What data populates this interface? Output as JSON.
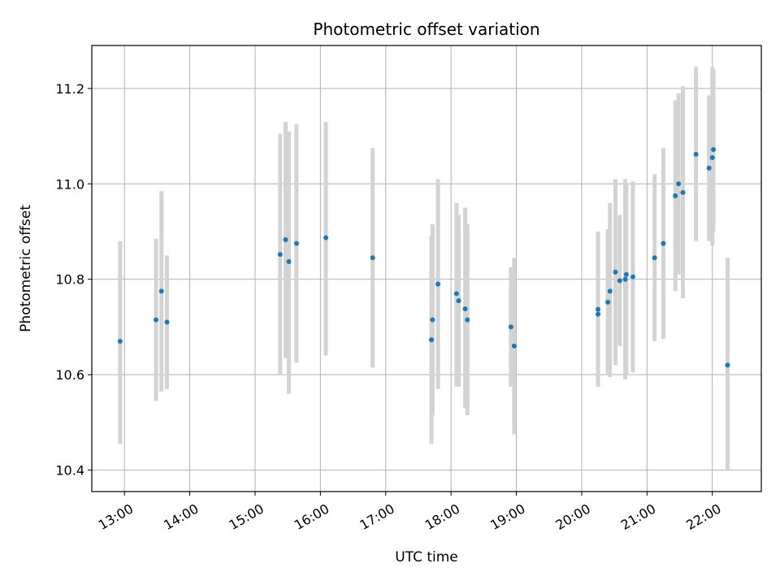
{
  "chart_data": {
    "type": "scatter",
    "title": "Photometric offset variation",
    "xlabel": "UTC time",
    "ylabel": "Photometric offset",
    "xlim": [
      "12:30",
      "22:45"
    ],
    "ylim": [
      10.355,
      11.29
    ],
    "grid": true,
    "x_tick_labels": [
      "13:00",
      "14:00",
      "15:00",
      "16:00",
      "17:00",
      "18:00",
      "19:00",
      "20:00",
      "21:00",
      "22:00"
    ],
    "y_tick_values": [
      10.4,
      10.6,
      10.8,
      11.0,
      11.2
    ],
    "y_tick_labels": [
      "10.4",
      "10.6",
      "10.8",
      "11.0",
      "11.2"
    ],
    "point_color": "#1f77b4",
    "errorbar_color": "#d3d3d3",
    "points": [
      {
        "x": "12:56",
        "y": 10.67,
        "ylow": 10.455,
        "yhigh": 10.88
      },
      {
        "x": "13:29",
        "y": 10.715,
        "ylow": 10.545,
        "yhigh": 10.885
      },
      {
        "x": "13:34",
        "y": 10.775,
        "ylow": 10.565,
        "yhigh": 10.985
      },
      {
        "x": "13:39",
        "y": 10.71,
        "ylow": 10.57,
        "yhigh": 10.85
      },
      {
        "x": "15:23",
        "y": 10.852,
        "ylow": 10.6,
        "yhigh": 11.105
      },
      {
        "x": "15:28",
        "y": 10.883,
        "ylow": 10.635,
        "yhigh": 11.13
      },
      {
        "x": "15:31",
        "y": 10.837,
        "ylow": 10.56,
        "yhigh": 11.11
      },
      {
        "x": "15:38",
        "y": 10.875,
        "ylow": 10.625,
        "yhigh": 11.125
      },
      {
        "x": "16:05",
        "y": 10.887,
        "ylow": 10.64,
        "yhigh": 11.13
      },
      {
        "x": "16:48",
        "y": 10.845,
        "ylow": 10.615,
        "yhigh": 11.075
      },
      {
        "x": "17:42",
        "y": 10.673,
        "ylow": 10.455,
        "yhigh": 10.89
      },
      {
        "x": "17:43",
        "y": 10.715,
        "ylow": 10.515,
        "yhigh": 10.915
      },
      {
        "x": "17:48",
        "y": 10.79,
        "ylow": 10.57,
        "yhigh": 11.01
      },
      {
        "x": "18:05",
        "y": 10.77,
        "ylow": 10.575,
        "yhigh": 10.96
      },
      {
        "x": "18:07",
        "y": 10.755,
        "ylow": 10.575,
        "yhigh": 10.935
      },
      {
        "x": "18:13",
        "y": 10.738,
        "ylow": 10.53,
        "yhigh": 10.95
      },
      {
        "x": "18:15",
        "y": 10.715,
        "ylow": 10.515,
        "yhigh": 10.915
      },
      {
        "x": "18:55",
        "y": 10.7,
        "ylow": 10.575,
        "yhigh": 10.825
      },
      {
        "x": "18:58",
        "y": 10.66,
        "ylow": 10.475,
        "yhigh": 10.845
      },
      {
        "x": "20:15",
        "y": 10.737,
        "ylow": 10.575,
        "yhigh": 10.9
      },
      {
        "x": "20:15",
        "y": 10.727,
        "ylow": 10.575,
        "yhigh": 10.885
      },
      {
        "x": "20:24",
        "y": 10.752,
        "ylow": 10.6,
        "yhigh": 10.905
      },
      {
        "x": "20:26",
        "y": 10.775,
        "ylow": 10.595,
        "yhigh": 10.96
      },
      {
        "x": "20:31",
        "y": 10.815,
        "ylow": 10.62,
        "yhigh": 11.01
      },
      {
        "x": "20:35",
        "y": 10.797,
        "ylow": 10.66,
        "yhigh": 10.935
      },
      {
        "x": "20:40",
        "y": 10.8,
        "ylow": 10.59,
        "yhigh": 11.01
      },
      {
        "x": "20:41",
        "y": 10.81,
        "ylow": 10.6,
        "yhigh": 11.0
      },
      {
        "x": "20:47",
        "y": 10.805,
        "ylow": 10.605,
        "yhigh": 11.005
      },
      {
        "x": "21:07",
        "y": 10.845,
        "ylow": 10.67,
        "yhigh": 11.02
      },
      {
        "x": "21:15",
        "y": 10.875,
        "ylow": 10.675,
        "yhigh": 11.075
      },
      {
        "x": "21:26",
        "y": 10.975,
        "ylow": 10.775,
        "yhigh": 11.175
      },
      {
        "x": "21:29",
        "y": 11.0,
        "ylow": 10.81,
        "yhigh": 11.19
      },
      {
        "x": "21:33",
        "y": 10.982,
        "ylow": 10.76,
        "yhigh": 11.205
      },
      {
        "x": "21:45",
        "y": 11.062,
        "ylow": 10.88,
        "yhigh": 11.245
      },
      {
        "x": "21:57",
        "y": 11.033,
        "ylow": 10.88,
        "yhigh": 11.185
      },
      {
        "x": "22:00",
        "y": 11.055,
        "ylow": 10.87,
        "yhigh": 11.245
      },
      {
        "x": "22:01",
        "y": 11.072,
        "ylow": 10.9,
        "yhigh": 11.24
      },
      {
        "x": "22:14",
        "y": 10.62,
        "ylow": 10.4,
        "yhigh": 10.845
      }
    ]
  }
}
